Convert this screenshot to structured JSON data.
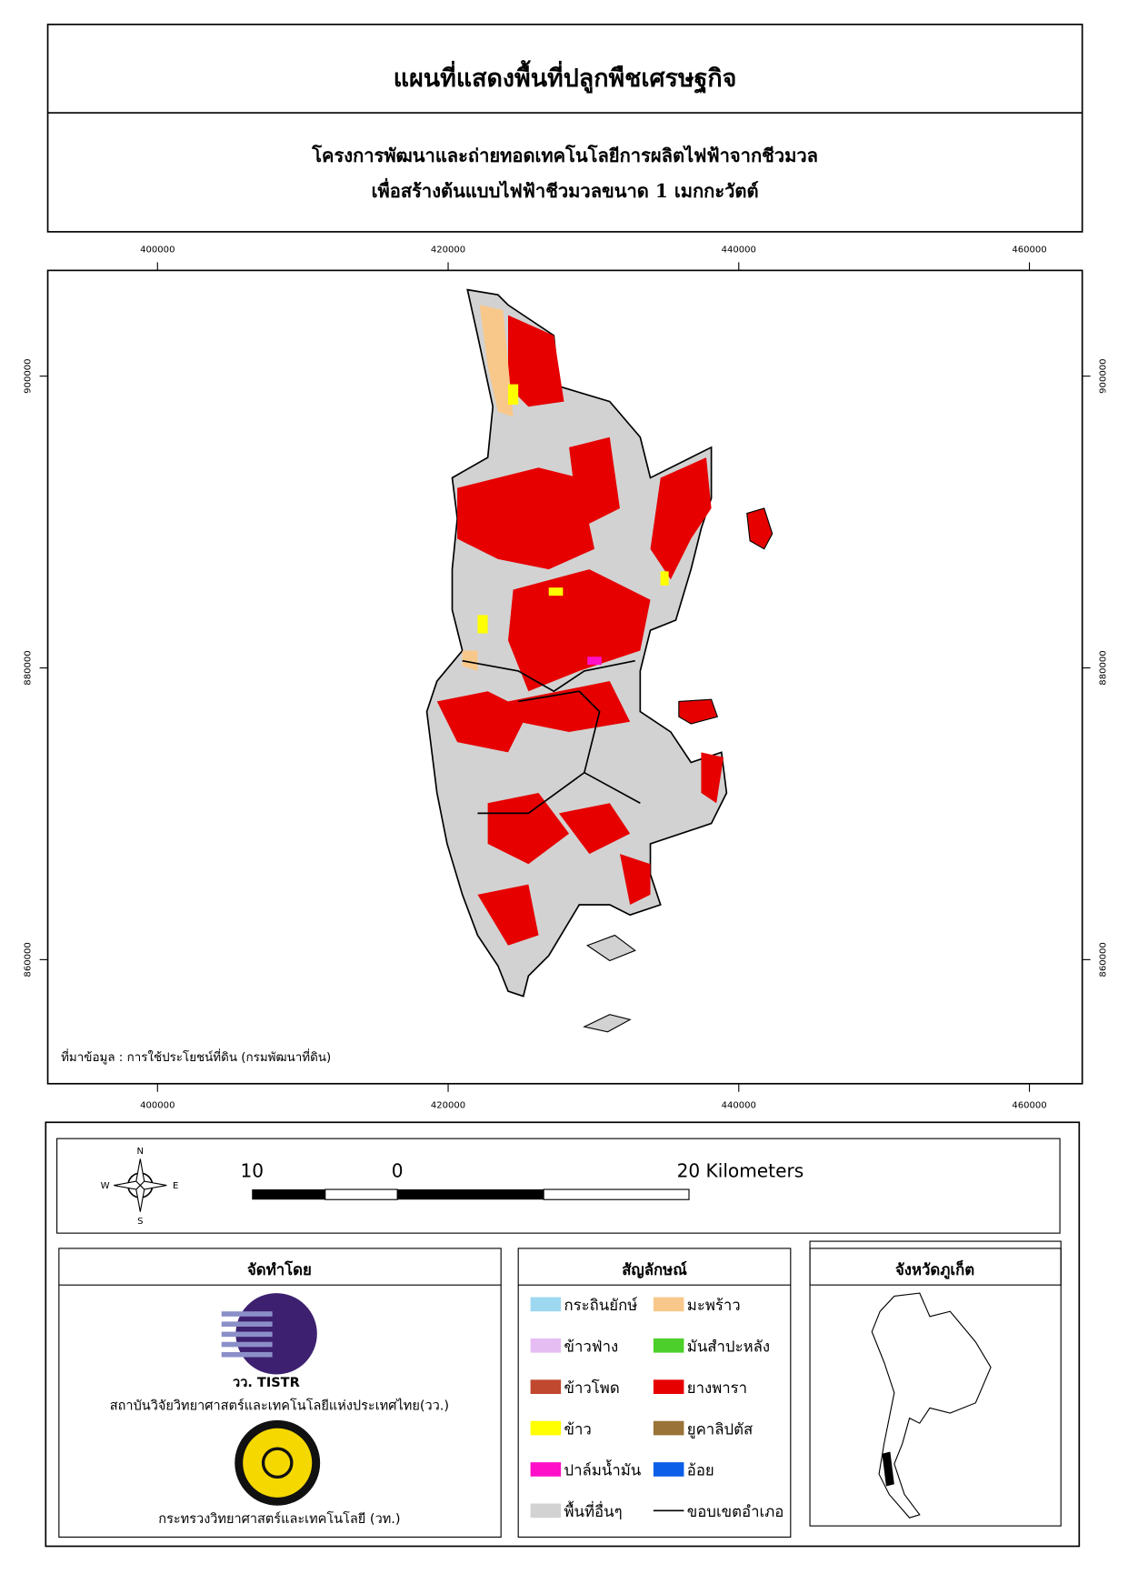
{
  "header": {
    "title": "แผนที่แสดงพื้นที่ปลูกพืชเศรษฐกิจ",
    "subtitle": [
      "โครงการพัฒนาและถ่ายทอดเทคโนโลยีการผลิตไฟฟ้าจากชีวมวล",
      "เพื่อสร้างต้นแบบไฟฟ้าชีวมวลขนาด 1 เมกกะวัตต์"
    ]
  },
  "map": {
    "x_ticks": [
      400000,
      420000,
      440000,
      460000
    ],
    "y_ticks": [
      900000,
      880000,
      860000
    ],
    "source": "ที่มาข้อมูล : การใช้ประโยชน์ที่ดิน  (กรมพัฒนาที่ดิน)"
  },
  "compass": [
    "N",
    "E",
    "S",
    "W"
  ],
  "scale_bar": [
    "10",
    "0",
    "20 Kilometers"
  ],
  "producer": {
    "title": "จัดทำโดย",
    "logo_text": "วว. TISTR",
    "orgs": [
      "สถาบันวิจัยวิทยาศาสตร์และเทคโนโลยีแห่งประเทศไทย(วว.)",
      "กระทรวงวิทยาศาสตร์และเทคโนโลยี (วท.)"
    ]
  },
  "legend": {
    "title": "สัญลักษณ์",
    "items": [
      {
        "label": "กระถินยักษ์",
        "color": "#9ed8f0"
      },
      {
        "label": "มะพร้าว",
        "color": "#f8c88a"
      },
      {
        "label": "ข้าวฟ่าง",
        "color": "#e6bdf2"
      },
      {
        "label": "มันสำปะหลัง",
        "color": "#4ccf2a"
      },
      {
        "label": "ข้าวโพด",
        "color": "#c0482e"
      },
      {
        "label": "ยางพารา",
        "color": "#e60000"
      },
      {
        "label": "ข้าว",
        "color": "#ffff00"
      },
      {
        "label": "ยูคาลิปตัส",
        "color": "#9a7338"
      },
      {
        "label": "ปาล์มน้ำมัน",
        "color": "#ff10c8"
      },
      {
        "label": "อ้อย",
        "color": "#0a5ee8"
      },
      {
        "label": "พื้นที่อื่นๆ",
        "color": "#d2d2d2"
      },
      {
        "label": "ขอบเขตอำเภอ",
        "color": "#000000"
      }
    ]
  },
  "inset": {
    "title": "จังหวัดภูเก็ต"
  }
}
